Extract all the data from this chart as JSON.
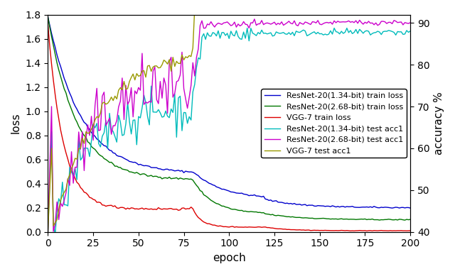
{
  "title": "",
  "xlabel": "epoch",
  "ylabel_left": "loss",
  "ylabel_right": "accuracy %",
  "xlim": [
    0,
    200
  ],
  "ylim_left": [
    0.0,
    1.8
  ],
  "ylim_right": [
    40,
    92.0
  ],
  "right_yticks": [
    40,
    50,
    60,
    70,
    80,
    90
  ],
  "x_ticks": [
    0,
    25,
    50,
    75,
    100,
    125,
    150,
    175,
    200
  ],
  "legend_labels": [
    "ResNet-20(1.34-bit) train loss",
    "ResNet-20(2.68-bit) train loss",
    "VGG-7 train loss",
    "ResNet-20(1.34-bit) test acc1",
    "ResNet-20(2.68-bit) test acc1",
    "VGG-7 test acc1"
  ],
  "colors": {
    "resnet134_loss": "#0000cc",
    "resnet268_loss": "#007700",
    "vgg7_loss": "#dd0000",
    "resnet134_acc": "#00bbbb",
    "resnet268_acc": "#cc00cc",
    "vgg7_acc": "#999900"
  },
  "seed": 42,
  "total_epochs": 201,
  "lr_drop_epochs": [
    80,
    120
  ]
}
